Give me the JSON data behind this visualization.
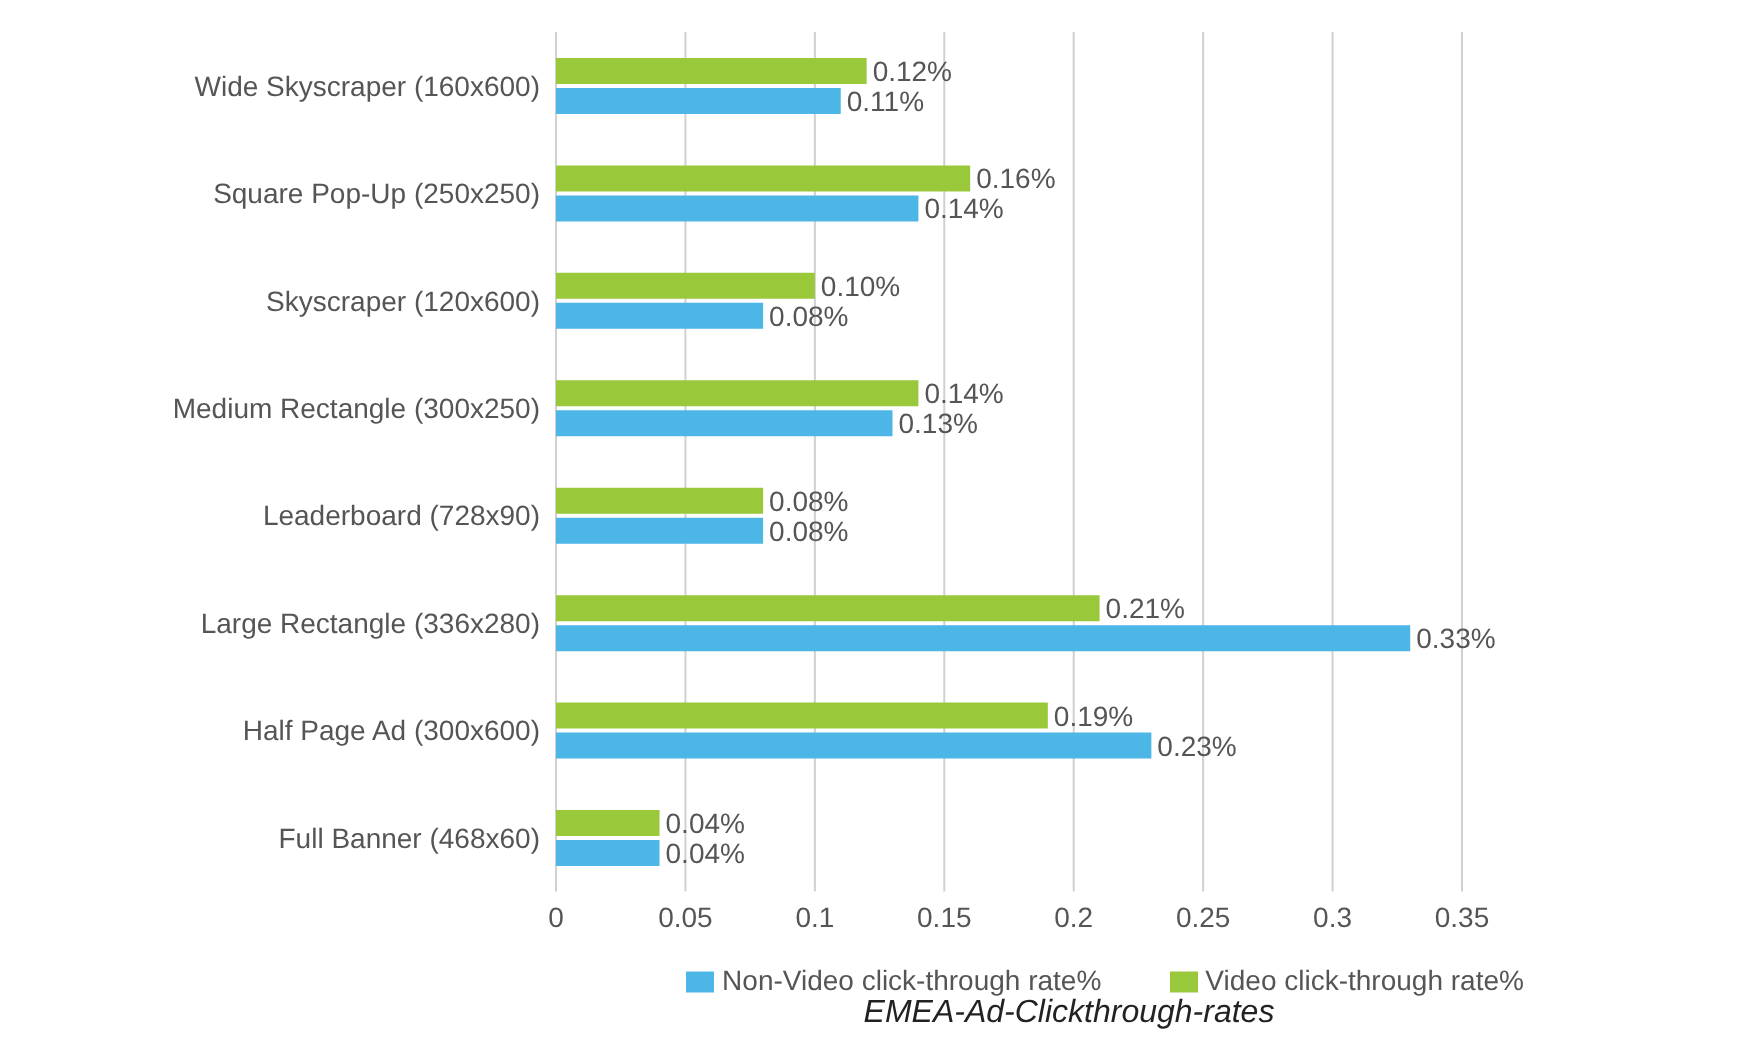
{
  "chart_data": {
    "type": "bar",
    "orientation": "horizontal",
    "categories": [
      "Wide Skyscraper (160x600)",
      "Square Pop-Up (250x250)",
      "Skyscraper (120x600)",
      "Medium Rectangle (300x250)",
      "Leaderboard (728x90)",
      "Large Rectangle (336x280)",
      "Half Page Ad (300x600)",
      "Full Banner (468x60)"
    ],
    "series": [
      {
        "name": "Video click-through rate%",
        "color": "#99c93b",
        "values": [
          0.12,
          0.16,
          0.1,
          0.14,
          0.08,
          0.21,
          0.19,
          0.04
        ],
        "value_labels": [
          "0.12%",
          "0.16%",
          "0.10%",
          "0.14%",
          "0.08%",
          "0.21%",
          "0.19%",
          "0.04%"
        ]
      },
      {
        "name": "Non-Video click-through rate%",
        "color": "#4cb6e6",
        "values": [
          0.11,
          0.14,
          0.08,
          0.13,
          0.08,
          0.33,
          0.23,
          0.04
        ],
        "value_labels": [
          "0.11%",
          "0.14%",
          "0.08%",
          "0.13%",
          "0.08%",
          "0.33%",
          "0.23%",
          "0.04%"
        ]
      }
    ],
    "xlim": [
      0,
      0.35
    ],
    "xticks": [
      0,
      0.05,
      0.1,
      0.15,
      0.2,
      0.25,
      0.3,
      0.35
    ],
    "grid": "x",
    "legend": "bottom",
    "annotations": [
      "EMEA-Ad-Clickthrough-rates"
    ]
  }
}
